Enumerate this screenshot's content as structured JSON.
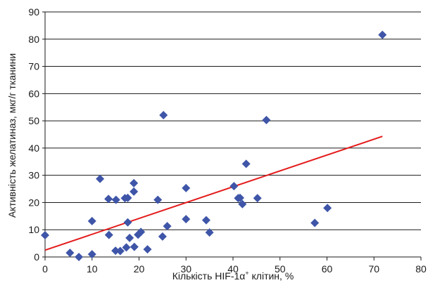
{
  "chart_data": {
    "type": "scatter",
    "xlabel": "Кількість HIF-1α+ клітин, %",
    "xlabel_parts": {
      "before": "Кількість  HIF-1α",
      "sup": "+",
      "after": " клітин, %"
    },
    "ylabel": "Активність желатиназ, мкг/г тканини",
    "xlim": [
      0,
      80
    ],
    "ylim": [
      0,
      90
    ],
    "xticks": [
      0,
      10,
      20,
      30,
      40,
      50,
      60,
      70,
      80
    ],
    "yticks": [
      0,
      10,
      20,
      30,
      40,
      50,
      60,
      70,
      80,
      90
    ],
    "grid": "horizontal",
    "series": [
      {
        "marker": "diamond",
        "color": "#3e55a8",
        "points": [
          {
            "x": 0,
            "y": 8
          },
          {
            "x": 5.3,
            "y": 1.5
          },
          {
            "x": 7.2,
            "y": 0
          },
          {
            "x": 10,
            "y": 1
          },
          {
            "x": 10,
            "y": 13.2
          },
          {
            "x": 11.7,
            "y": 28.7
          },
          {
            "x": 13.5,
            "y": 21.3
          },
          {
            "x": 13.6,
            "y": 8.1
          },
          {
            "x": 15,
            "y": 2.3
          },
          {
            "x": 15.1,
            "y": 21
          },
          {
            "x": 16,
            "y": 2.2
          },
          {
            "x": 17,
            "y": 21.6
          },
          {
            "x": 17.3,
            "y": 3.5
          },
          {
            "x": 17.6,
            "y": 12.7
          },
          {
            "x": 17.6,
            "y": 21.7
          },
          {
            "x": 18,
            "y": 7
          },
          {
            "x": 18.9,
            "y": 27.1
          },
          {
            "x": 18.9,
            "y": 24
          },
          {
            "x": 19,
            "y": 3.7
          },
          {
            "x": 19.8,
            "y": 8.2
          },
          {
            "x": 20.4,
            "y": 9.2
          },
          {
            "x": 21.8,
            "y": 2.8
          },
          {
            "x": 24,
            "y": 21
          },
          {
            "x": 25,
            "y": 7.5
          },
          {
            "x": 25.2,
            "y": 52.1
          },
          {
            "x": 26,
            "y": 11.3
          },
          {
            "x": 30,
            "y": 25.3
          },
          {
            "x": 30,
            "y": 13.9
          },
          {
            "x": 34.3,
            "y": 13.5
          },
          {
            "x": 35,
            "y": 9
          },
          {
            "x": 40.2,
            "y": 26
          },
          {
            "x": 41.1,
            "y": 21.6
          },
          {
            "x": 41.5,
            "y": 21.7
          },
          {
            "x": 42,
            "y": 19.4
          },
          {
            "x": 42.8,
            "y": 34.2
          },
          {
            "x": 45.2,
            "y": 21.6
          },
          {
            "x": 47.1,
            "y": 50.3
          },
          {
            "x": 57.4,
            "y": 12.5
          },
          {
            "x": 60.1,
            "y": 18
          },
          {
            "x": 71.8,
            "y": 81.6
          }
        ]
      }
    ],
    "trendline": {
      "type": "linear",
      "color": "#e41b1b",
      "x": [
        0,
        71.8
      ],
      "y": [
        2.5,
        44.3
      ]
    }
  }
}
